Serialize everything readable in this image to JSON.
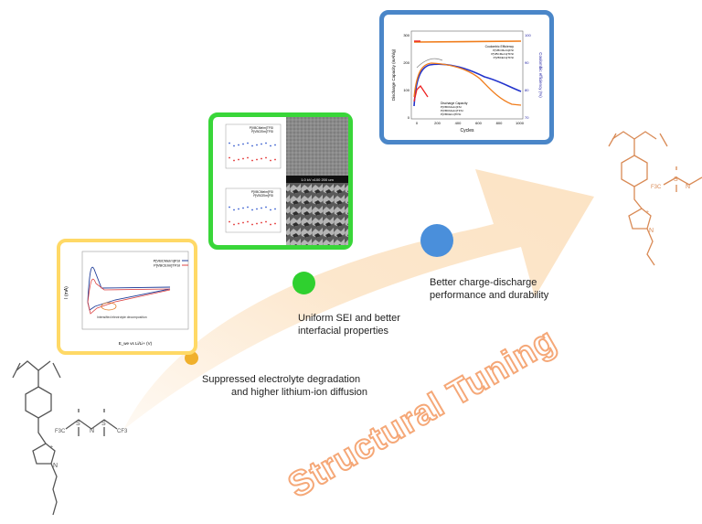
{
  "colors": {
    "arrow": "#fce3c4",
    "orange_text": "#f5a878",
    "dot_small": "#f0b02c",
    "dot_green": "#2fd02f",
    "dot_blue": "#4a8fdb",
    "panel1_border": "#ffd966",
    "panel2_border": "#39d639",
    "panel3_border": "#4a86c8",
    "molecule_gray": "#555555",
    "molecule_orange": "#d98a55"
  },
  "steps": [
    {
      "label_line1": "Suppressed electrolyte degradation",
      "label_line2": "and higher lithium-ion diffusion"
    },
    {
      "label_line1": "Uniform SEI and better",
      "label_line2": "interfacial properties"
    },
    {
      "label_line1": "Better charge-discharge",
      "label_line2": "performance and durability"
    }
  ],
  "tuning_text": "Structural Tuning",
  "panel1": {
    "legend": [
      "P[VBCMeIm]FSI",
      "P[VBCEIm]TFSI"
    ],
    "ylabel": "I (mA)",
    "xlabel": "E_we vs Li/Li+ (V)",
    "annotation": "Intensified electrolyte decomposition"
  },
  "panel2": {
    "legend_top": [
      "P[VBCMeIm]TFSI",
      "P[VBCEIm]TFSI"
    ],
    "legend_bottom": [
      "P[VBCMeIm]FSI",
      "P[VBCEIm]FSI"
    ],
    "sem_scale": "1.0 kV x100 200 um"
  },
  "panel3": {
    "ylabel_left": "Discharge Capacity (mAh/g)",
    "ylabel_right": "Coulombic efficiency (%)",
    "xlabel": "Cycles",
    "x_ticks": [
      "0",
      "200",
      "400",
      "600",
      "800",
      "1000"
    ],
    "y_left_ticks": [
      "300",
      "200",
      "100",
      "0"
    ],
    "y_right_ticks": [
      "100",
      "90",
      "80",
      "70"
    ],
    "legend_ce_title": "Coulombic Efficiency",
    "legend_ce": [
      "P[VBCMeIm]FSI",
      "P[VBCMeIm]TFSI",
      "P[VBCEIm]TFSI"
    ],
    "legend_dc_title": "Discharge Capacity",
    "legend_dc": [
      "P[VBCMeIm]FSI",
      "P[VBCMeIm]TFSI",
      "P[VBCEIm]TFSI"
    ]
  },
  "molecules": {
    "left": {
      "cf3_left": "F3C",
      "cf3_right": "CF3",
      "n_label": "N",
      "s_label": "S",
      "plus": "+"
    },
    "right": {
      "n_label": "N",
      "s_label": "S",
      "plus": "+",
      "f3c": "F3C"
    }
  }
}
